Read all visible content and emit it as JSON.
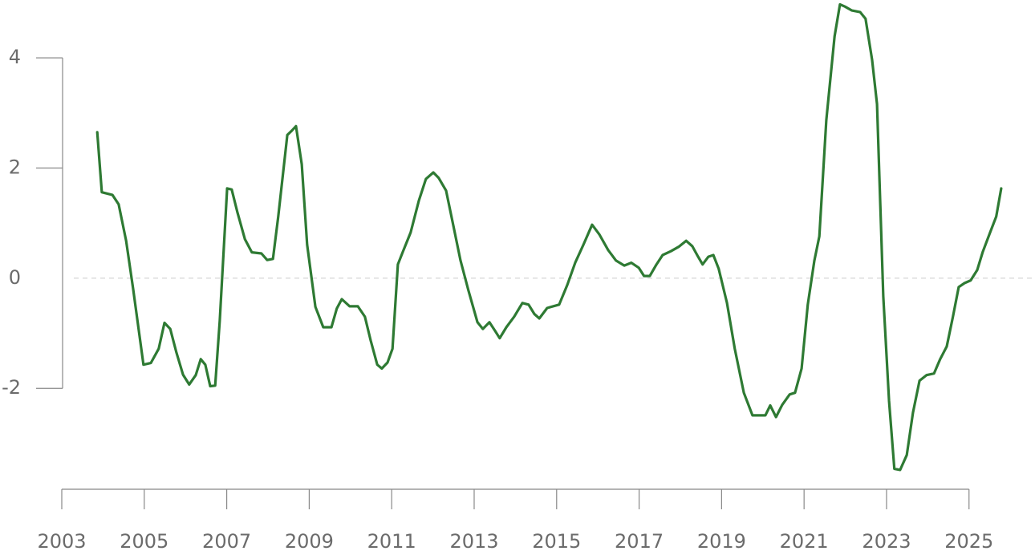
{
  "chart_data": {
    "type": "line",
    "color": "#2e7a33",
    "x": [
      2003.86,
      2003.97,
      2004.23,
      2004.38,
      2004.56,
      2004.73,
      2004.98,
      2005.16,
      2005.35,
      2005.49,
      2005.63,
      2005.78,
      2005.94,
      2006.09,
      2006.25,
      2006.37,
      2006.48,
      2006.6,
      2006.72,
      2006.83,
      2007.01,
      2007.12,
      2007.26,
      2007.44,
      2007.61,
      2007.84,
      2007.98,
      2008.12,
      2008.25,
      2008.47,
      2008.58,
      2008.68,
      2008.82,
      2008.95,
      2009.15,
      2009.34,
      2009.54,
      2009.67,
      2009.79,
      2009.98,
      2010.18,
      2010.35,
      2010.49,
      2010.65,
      2010.76,
      2010.9,
      2011.02,
      2011.15,
      2011.27,
      2011.46,
      2011.66,
      2011.83,
      2012.01,
      2012.14,
      2012.32,
      2012.49,
      2012.67,
      2012.86,
      2013.08,
      2013.21,
      2013.37,
      2013.51,
      2013.62,
      2013.78,
      2013.97,
      2014.17,
      2014.32,
      2014.46,
      2014.58,
      2014.77,
      2015.06,
      2015.26,
      2015.45,
      2015.65,
      2015.86,
      2016.04,
      2016.25,
      2016.44,
      2016.64,
      2016.81,
      2016.99,
      2017.12,
      2017.26,
      2017.42,
      2017.57,
      2017.77,
      2017.96,
      2018.14,
      2018.29,
      2018.43,
      2018.54,
      2018.68,
      2018.8,
      2018.93,
      2019.13,
      2019.32,
      2019.54,
      2019.75,
      2019.93,
      2020.06,
      2020.18,
      2020.32,
      2020.47,
      2020.65,
      2020.78,
      2020.94,
      2021.09,
      2021.25,
      2021.37,
      2021.54,
      2021.74,
      2021.87,
      2021.99,
      2022.16,
      2022.36,
      2022.49,
      2022.65,
      2022.77,
      2022.92,
      2023.06,
      2023.19,
      2023.33,
      2023.49,
      2023.64,
      2023.8,
      2023.97,
      2024.15,
      2024.3,
      2024.46,
      2024.61,
      2024.75,
      2024.89,
      2025.04,
      2025.2,
      2025.33,
      2025.51,
      2025.66,
      2025.78
    ],
    "values": [
      2.65,
      1.56,
      1.51,
      1.34,
      0.68,
      -0.19,
      -1.57,
      -1.54,
      -1.28,
      -0.81,
      -0.92,
      -1.35,
      -1.75,
      -1.93,
      -1.76,
      -1.47,
      -1.57,
      -1.96,
      -1.95,
      -0.77,
      1.63,
      1.61,
      1.19,
      0.71,
      0.47,
      0.45,
      0.33,
      0.35,
      1.12,
      2.6,
      2.68,
      2.76,
      2.07,
      0.61,
      -0.52,
      -0.89,
      -0.89,
      -0.55,
      -0.38,
      -0.51,
      -0.51,
      -0.7,
      -1.13,
      -1.57,
      -1.64,
      -1.53,
      -1.28,
      0.25,
      0.48,
      0.83,
      1.41,
      1.8,
      1.92,
      1.82,
      1.59,
      0.97,
      0.32,
      -0.22,
      -0.8,
      -0.92,
      -0.8,
      -0.96,
      -1.09,
      -0.89,
      -0.7,
      -0.45,
      -0.48,
      -0.65,
      -0.73,
      -0.54,
      -0.48,
      -0.12,
      0.28,
      0.61,
      0.97,
      0.79,
      0.51,
      0.32,
      0.23,
      0.28,
      0.19,
      0.04,
      0.04,
      0.25,
      0.42,
      0.49,
      0.57,
      0.68,
      0.58,
      0.39,
      0.25,
      0.39,
      0.42,
      0.17,
      -0.45,
      -1.28,
      -2.08,
      -2.49,
      -2.49,
      -2.49,
      -2.31,
      -2.52,
      -2.3,
      -2.11,
      -2.08,
      -1.64,
      -0.48,
      0.32,
      0.76,
      2.87,
      4.39,
      4.97,
      4.93,
      4.86,
      4.83,
      4.71,
      3.96,
      3.16,
      -0.33,
      -2.23,
      -3.46,
      -3.48,
      -3.21,
      -2.44,
      -1.86,
      -1.76,
      -1.73,
      -1.47,
      -1.24,
      -0.7,
      -0.16,
      -0.09,
      -0.04,
      0.15,
      0.47,
      0.83,
      1.12,
      1.63
    ],
    "xlim": [
      2003,
      2026.6
    ],
    "xticks": [
      2003,
      2005,
      2007,
      2009,
      2011,
      2013,
      2015,
      2017,
      2019,
      2021,
      2023,
      2025
    ],
    "ylim": [
      -3.7,
      5.05
    ],
    "yticks": [
      4,
      2,
      0,
      -2
    ],
    "zero_line": true
  }
}
